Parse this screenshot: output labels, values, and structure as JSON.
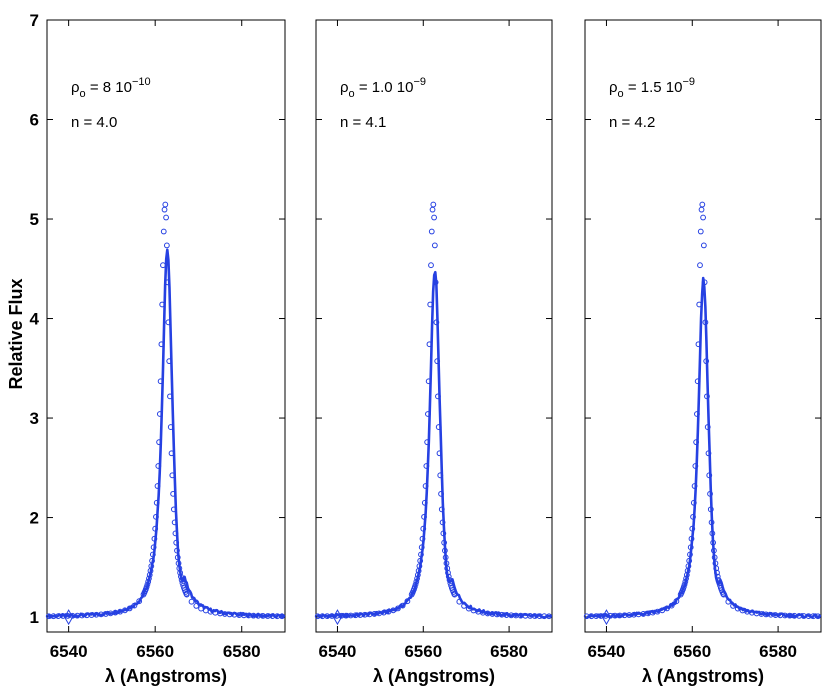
{
  "chart_data": [
    {
      "type": "line+scatter",
      "panel": "left",
      "xlabel": "λ (Angstroms)",
      "ylabel": "Relative Flux",
      "xlim": [
        6535,
        6590
      ],
      "ylim": [
        0.85,
        7
      ],
      "xticks": [
        6540,
        6560,
        6580
      ],
      "xtick_labels": [
        "6540",
        "6560",
        "6580"
      ],
      "yticks": [
        1,
        2,
        3,
        4,
        5,
        6,
        7
      ],
      "ytick_labels": [
        "1",
        "2",
        "3",
        "4",
        "5",
        "6",
        "7"
      ],
      "annotations": {
        "rho_symbol": "ρ",
        "rho_sub": "o",
        "rho_value_text": " = 8 10",
        "rho_exponent": "−10",
        "n_text": "n = 4.0"
      },
      "model": {
        "center": 6562.3,
        "peak": 5.15,
        "width": 1.2
      },
      "observed": {
        "center": 6562.8,
        "peak": 4.75,
        "width": 1.4,
        "dip": 0.05
      },
      "color": "#2641e2"
    },
    {
      "type": "line+scatter",
      "panel": "middle",
      "xlabel": "λ (Angstroms)",
      "ylabel": "",
      "xlim": [
        6535,
        6590
      ],
      "ylim": [
        0.85,
        7
      ],
      "xticks": [
        6540,
        6560,
        6580
      ],
      "xtick_labels": [
        "6540",
        "6560",
        "6580"
      ],
      "yticks": [
        1,
        2,
        3,
        4,
        5,
        6,
        7
      ],
      "ytick_labels": [],
      "annotations": {
        "rho_symbol": "ρ",
        "rho_sub": "o",
        "rho_value_text": " = 1.0 10",
        "rho_exponent": "−9",
        "n_text": "n = 4.1"
      },
      "model": {
        "center": 6562.3,
        "peak": 5.15,
        "width": 1.2
      },
      "observed": {
        "center": 6562.7,
        "peak": 4.55,
        "width": 1.4,
        "dip": 0.08
      },
      "color": "#2641e2"
    },
    {
      "type": "line+scatter",
      "panel": "right",
      "xlabel": "λ (Angstroms)",
      "ylabel": "",
      "xlim": [
        6535,
        6590
      ],
      "ylim": [
        0.85,
        7
      ],
      "xticks": [
        6540,
        6560,
        6580
      ],
      "xtick_labels": [
        "6540",
        "6560",
        "6580"
      ],
      "yticks": [
        1,
        2,
        3,
        4,
        5,
        6,
        7
      ],
      "ytick_labels": [],
      "annotations": {
        "rho_symbol": "ρ",
        "rho_sub": "o",
        "rho_value_text": " = 1.5 10",
        "rho_exponent": "−9",
        "n_text": "n = 4.2"
      },
      "model": {
        "center": 6562.3,
        "peak": 5.15,
        "width": 1.2
      },
      "observed": {
        "center": 6562.6,
        "peak": 4.45,
        "width": 1.4,
        "dip": 0.05
      },
      "color": "#2641e2"
    }
  ]
}
